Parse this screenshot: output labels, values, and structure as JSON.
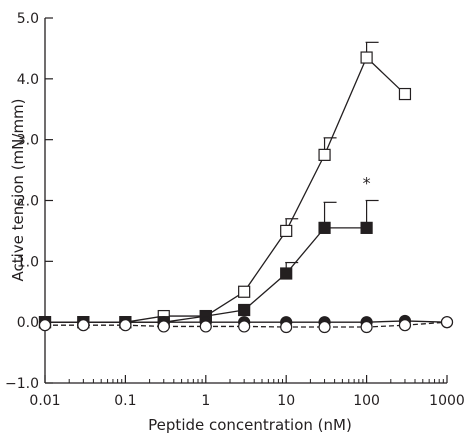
{
  "chart_data": {
    "type": "line",
    "title": "",
    "xlabel": "Peptide concentration (nM)",
    "ylabel": "Active tension (mN/mm)",
    "xscale": "log",
    "xlim": [
      0.01,
      1000
    ],
    "ylim": [
      -1.0,
      5.0
    ],
    "x_ticks": [
      {
        "value": 0.01,
        "label": "0.01"
      },
      {
        "value": 0.1,
        "label": "0.1"
      },
      {
        "value": 1,
        "label": "1"
      },
      {
        "value": 10,
        "label": "10"
      },
      {
        "value": 100,
        "label": "100"
      },
      {
        "value": 1000,
        "label": "1000"
      }
    ],
    "y_ticks": [
      {
        "value": -1.0,
        "label": "−1.0"
      },
      {
        "value": 0.0,
        "label": "0.0"
      },
      {
        "value": 1.0,
        "label": "1.0"
      },
      {
        "value": 2.0,
        "label": "2.0"
      },
      {
        "value": 3.0,
        "label": "3.0"
      },
      {
        "value": 4.0,
        "label": "4.0"
      },
      {
        "value": 5.0,
        "label": "5.0"
      }
    ],
    "grid": false,
    "legend": "none",
    "series": [
      {
        "marker": "open-square",
        "line": "solid",
        "points": [
          {
            "x": 0.01,
            "y": 0.0
          },
          {
            "x": 0.03,
            "y": 0.0
          },
          {
            "x": 0.1,
            "y": 0.0
          },
          {
            "x": 0.3,
            "y": 0.1
          },
          {
            "x": 1,
            "y": 0.1
          },
          {
            "x": 3,
            "y": 0.5
          },
          {
            "x": 10,
            "y": 1.5,
            "err": 0.2
          },
          {
            "x": 30,
            "y": 2.75,
            "err": 0.28
          },
          {
            "x": 100,
            "y": 4.35,
            "err": 0.25
          },
          {
            "x": 300,
            "y": 3.75
          }
        ]
      },
      {
        "marker": "filled-square",
        "line": "solid",
        "points": [
          {
            "x": 0.01,
            "y": 0.0
          },
          {
            "x": 0.03,
            "y": 0.0
          },
          {
            "x": 0.1,
            "y": 0.0
          },
          {
            "x": 0.3,
            "y": 0.0
          },
          {
            "x": 1,
            "y": 0.1
          },
          {
            "x": 3,
            "y": 0.2
          },
          {
            "x": 10,
            "y": 0.8,
            "err": 0.18
          },
          {
            "x": 30,
            "y": 1.55,
            "err": 0.42
          },
          {
            "x": 100,
            "y": 1.55,
            "err": 0.45
          }
        ]
      },
      {
        "marker": "filled-circle",
        "line": "solid",
        "points": [
          {
            "x": 0.01,
            "y": 0.0
          },
          {
            "x": 0.03,
            "y": 0.0
          },
          {
            "x": 0.1,
            "y": 0.0
          },
          {
            "x": 0.3,
            "y": 0.0
          },
          {
            "x": 1,
            "y": 0.0
          },
          {
            "x": 3,
            "y": 0.0
          },
          {
            "x": 10,
            "y": 0.0
          },
          {
            "x": 30,
            "y": 0.0
          },
          {
            "x": 100,
            "y": 0.0
          },
          {
            "x": 300,
            "y": 0.02
          },
          {
            "x": 1000,
            "y": 0.0
          }
        ]
      },
      {
        "marker": "open-circle",
        "line": "dashed",
        "points": [
          {
            "x": 0.01,
            "y": -0.05
          },
          {
            "x": 0.03,
            "y": -0.05
          },
          {
            "x": 0.1,
            "y": -0.05
          },
          {
            "x": 0.3,
            "y": -0.07
          },
          {
            "x": 1,
            "y": -0.07
          },
          {
            "x": 3,
            "y": -0.07
          },
          {
            "x": 10,
            "y": -0.08
          },
          {
            "x": 30,
            "y": -0.08
          },
          {
            "x": 100,
            "y": -0.08
          },
          {
            "x": 300,
            "y": -0.05
          },
          {
            "x": 1000,
            "y": 0.0
          }
        ]
      }
    ],
    "annotations": [
      {
        "text": "*",
        "x": 100,
        "y": 2.3
      }
    ],
    "colors": {
      "ink": "#231f20",
      "background": "#ffffff"
    }
  }
}
